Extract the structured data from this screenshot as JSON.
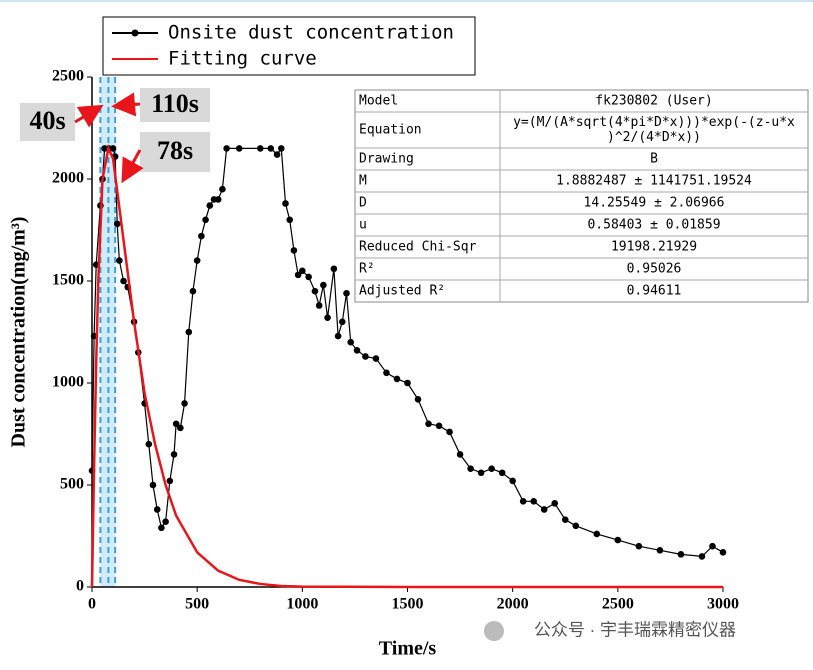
{
  "chart_data": {
    "type": "line",
    "xlabel": "Time/s",
    "ylabel": "Dust concentration(mg/m³)",
    "xlim": [
      0,
      3000
    ],
    "ylim": [
      0,
      2500
    ],
    "xticks": [
      0,
      500,
      1000,
      1500,
      2000,
      2500,
      3000
    ],
    "yticks": [
      0,
      500,
      1000,
      1500,
      2000,
      2500
    ],
    "legend": "upper left",
    "series": [
      {
        "name": "Onsite dust concentration",
        "color": "#000000",
        "marker": "circle",
        "x": [
          0,
          10,
          20,
          40,
          50,
          60,
          80,
          100,
          110,
          120,
          130,
          150,
          170,
          200,
          220,
          250,
          270,
          290,
          310,
          330,
          350,
          370,
          390,
          400,
          420,
          440,
          460,
          480,
          500,
          520,
          540,
          560,
          580,
          600,
          620,
          640,
          700,
          800,
          850,
          880,
          900,
          920,
          940,
          960,
          980,
          1000,
          1030,
          1060,
          1080,
          1100,
          1120,
          1150,
          1170,
          1190,
          1210,
          1230,
          1260,
          1300,
          1350,
          1400,
          1450,
          1500,
          1550,
          1600,
          1650,
          1700,
          1750,
          1800,
          1850,
          1900,
          1950,
          2000,
          2050,
          2100,
          2150,
          2200,
          2250,
          2300,
          2400,
          2500,
          2600,
          2700,
          2800,
          2900,
          2950,
          3000
        ],
        "values": [
          570,
          1230,
          1580,
          1870,
          2000,
          2150,
          2150,
          2150,
          2110,
          1780,
          1600,
          1500,
          1470,
          1300,
          1150,
          900,
          700,
          500,
          380,
          290,
          320,
          520,
          650,
          800,
          780,
          900,
          1250,
          1450,
          1600,
          1720,
          1800,
          1870,
          1900,
          1900,
          1950,
          2150,
          2150,
          2150,
          2150,
          2120,
          2150,
          1880,
          1800,
          1650,
          1530,
          1550,
          1520,
          1450,
          1380,
          1480,
          1320,
          1560,
          1230,
          1300,
          1440,
          1200,
          1160,
          1130,
          1120,
          1050,
          1020,
          1000,
          920,
          800,
          790,
          760,
          650,
          580,
          560,
          580,
          560,
          520,
          420,
          420,
          380,
          410,
          330,
          300,
          260,
          230,
          200,
          180,
          160,
          150,
          200,
          170
        ]
      },
      {
        "name": "Fitting curve",
        "color": "#e8161b",
        "x": [
          0,
          10,
          20,
          30,
          50,
          78,
          100,
          150,
          200,
          250,
          300,
          350,
          400,
          500,
          600,
          700,
          800,
          900,
          1000,
          1500,
          2000,
          2500,
          3000
        ],
        "values": [
          0,
          600,
          1100,
          1500,
          2000,
          2150,
          2100,
          1700,
          1300,
          950,
          700,
          500,
          350,
          170,
          80,
          35,
          15,
          5,
          2,
          0,
          0,
          0,
          0
        ]
      }
    ],
    "annotations": [
      {
        "text": "40s",
        "x": 40
      },
      {
        "text": "110s",
        "x": 110
      },
      {
        "text": "78s",
        "x": 78
      }
    ],
    "table": {
      "rows": [
        [
          "Model",
          [
            "fk230802 (User)"
          ]
        ],
        [
          "Equation",
          [
            "y=(M/(A*sqrt(4*pi*D*x)))*exp(-(z-u*x",
            ")^2/(4*D*x))"
          ]
        ],
        [
          "Drawing",
          [
            "B"
          ]
        ],
        [
          "M",
          [
            "1.8882487 ± 1141751.19524"
          ]
        ],
        [
          "D",
          [
            "14.25549 ± 2.06966"
          ]
        ],
        [
          "u",
          [
            "0.58403 ± 0.01859"
          ]
        ],
        [
          "Reduced Chi-Sqr",
          [
            "19198.21929"
          ]
        ],
        [
          "R²",
          [
            "0.95026"
          ]
        ],
        [
          "Adjusted R²",
          [
            "0.94611"
          ]
        ]
      ]
    }
  },
  "watermark": "公众号 · 宇丰瑞霖精密仪器"
}
